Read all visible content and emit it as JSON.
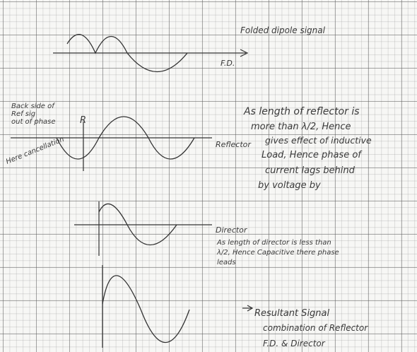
{
  "folded_dipole": {
    "label": "Folded dipole signal",
    "axis_label": "F.D."
  },
  "reflector": {
    "side_note": [
      "Back side of",
      "Ref sig",
      "out of phase"
    ],
    "marker": "R",
    "cancellation": "Here cancellation",
    "axis_label": "Reflector",
    "note": [
      "As length of reflector is",
      "more than λ/2, Hence",
      "gives effect of inductive",
      "Load, Hence phase of",
      "current lags behind",
      "by voltage by"
    ]
  },
  "director": {
    "axis_label": "Director",
    "note": [
      "As length of director is less than",
      "λ/2, Hence Capacitive there phase",
      "leads"
    ]
  },
  "resultant": {
    "note": [
      "Resultant Signal",
      "combination of Reflector",
      "F.D. & Director"
    ]
  }
}
